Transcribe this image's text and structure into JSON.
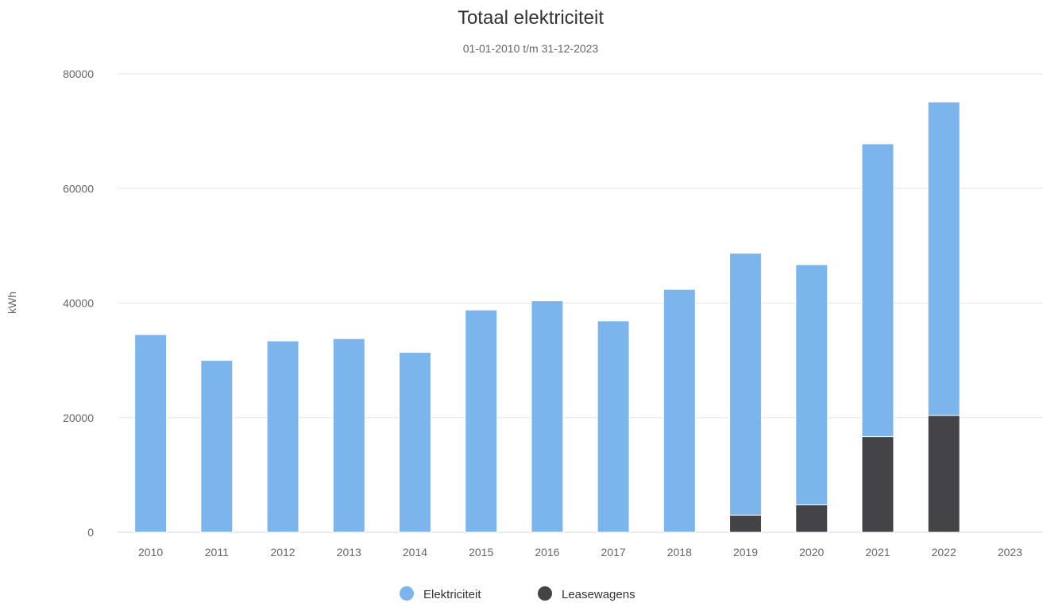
{
  "chart_data": {
    "type": "bar",
    "stacked": true,
    "title": "Totaal elektriciteit",
    "subtitle": "01-01-2010 t/m 31-12-2023",
    "xlabel": "",
    "ylabel": "kWh",
    "ylim": [
      0,
      80000
    ],
    "yticks": [
      0,
      20000,
      40000,
      60000,
      80000
    ],
    "grid": true,
    "legend_position": "bottom",
    "categories": [
      "2010",
      "2011",
      "2012",
      "2013",
      "2014",
      "2015",
      "2016",
      "2017",
      "2018",
      "2019",
      "2020",
      "2021",
      "2022",
      "2023"
    ],
    "series": [
      {
        "name": "Leasewagens",
        "color": "#434348",
        "values": [
          0,
          0,
          0,
          0,
          0,
          0,
          0,
          0,
          0,
          3000,
          4800,
          16700,
          20400,
          0
        ]
      },
      {
        "name": "Elektriciteit",
        "color": "#7cb5ec",
        "values": [
          34500,
          30000,
          33400,
          33800,
          31400,
          38800,
          40400,
          36900,
          42400,
          45700,
          41900,
          51100,
          54700,
          0
        ]
      }
    ],
    "legend_order": [
      "Elektriciteit",
      "Leasewagens"
    ]
  }
}
